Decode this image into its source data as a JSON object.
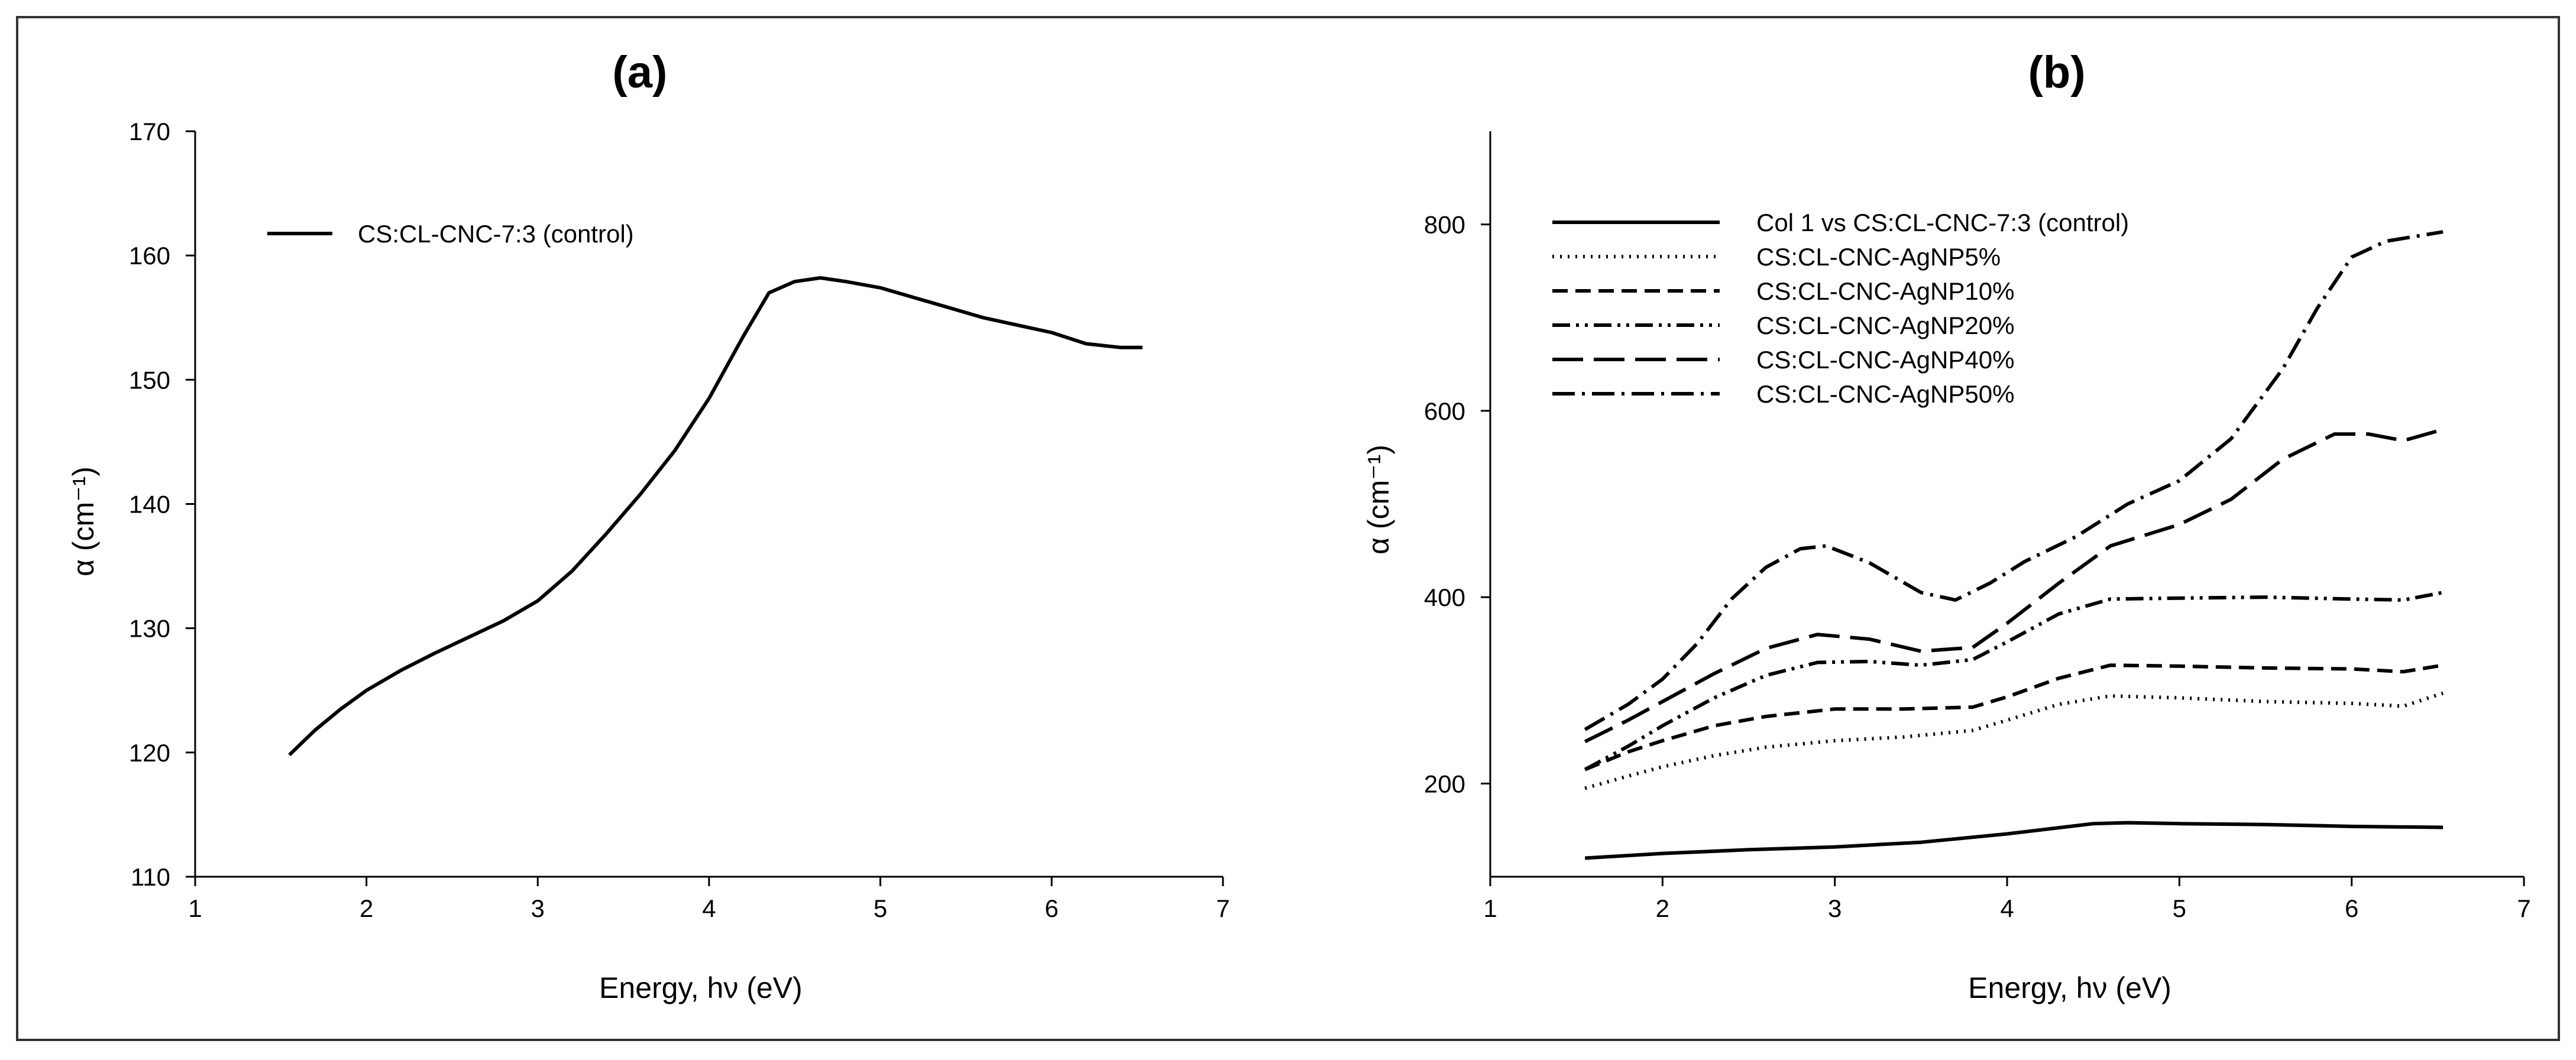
{
  "chart_data": [
    {
      "type": "line",
      "title": "(a)",
      "xlabel": "Energy, hν (eV)",
      "ylabel": "α (cm⁻¹)",
      "xlim": [
        1,
        7
      ],
      "ylim": [
        110,
        170
      ],
      "xticks": [
        "1",
        "2",
        "3",
        "4",
        "5",
        "6",
        "7"
      ],
      "yticks": [
        "110",
        "120",
        "130",
        "140",
        "150",
        "160",
        "170"
      ],
      "legend_position": "top-left",
      "series": [
        {
          "name": "CS:CL-CNC-7:3 (control)",
          "dash": "solid",
          "x": [
            1.55,
            1.7,
            1.85,
            2.0,
            2.2,
            2.4,
            2.6,
            2.8,
            3.0,
            3.2,
            3.4,
            3.6,
            3.8,
            4.0,
            4.2,
            4.35,
            4.5,
            4.65,
            4.8,
            5.0,
            5.2,
            5.4,
            5.6,
            5.8,
            6.0,
            6.2,
            6.4,
            6.53
          ],
          "y": [
            119.8,
            121.8,
            123.5,
            125,
            126.6,
            128,
            129.3,
            130.6,
            132.2,
            134.6,
            137.6,
            140.8,
            144.3,
            148.5,
            153.5,
            157.0,
            157.9,
            158.2,
            157.9,
            157.4,
            156.6,
            155.8,
            155.0,
            154.4,
            153.8,
            152.9,
            152.6,
            152.6
          ]
        }
      ]
    },
    {
      "type": "line",
      "title": "(b)",
      "xlabel": "Energy, hν (eV)",
      "ylabel": "α (cm⁻¹)",
      "xlim": [
        1,
        7
      ],
      "ylim": [
        100,
        900
      ],
      "xticks": [
        "1",
        "2",
        "3",
        "4",
        "5",
        "6",
        "7"
      ],
      "yticks": [
        "200",
        "400",
        "600",
        "800"
      ],
      "legend_position": "top-left",
      "series": [
        {
          "name": "Col 1 vs CS:CL-CNC-7:3 (control)",
          "dash": "solid",
          "x": [
            1.55,
            2.0,
            2.5,
            3.0,
            3.5,
            4.0,
            4.5,
            4.7,
            5.0,
            5.5,
            6.0,
            6.53
          ],
          "y": [
            120,
            125,
            129,
            132,
            137,
            146,
            157,
            158,
            157,
            156,
            154,
            153
          ]
        },
        {
          "name": "CS:CL-CNC-AgNP5%",
          "dash": "dot",
          "x": [
            1.55,
            1.8,
            2.0,
            2.3,
            2.6,
            3.0,
            3.4,
            3.8,
            4.0,
            4.3,
            4.6,
            5.0,
            5.5,
            6.0,
            6.3,
            6.53
          ],
          "y": [
            195,
            208,
            218,
            230,
            239,
            246,
            250,
            257,
            268,
            285,
            294,
            292,
            288,
            286,
            283,
            297
          ]
        },
        {
          "name": "CS:CL-CNC-AgNP10%",
          "dash": "dash",
          "x": [
            1.55,
            1.8,
            2.0,
            2.3,
            2.6,
            3.0,
            3.4,
            3.8,
            4.0,
            4.3,
            4.6,
            5.0,
            5.5,
            6.0,
            6.3,
            6.53
          ],
          "y": [
            215,
            234,
            246,
            262,
            272,
            280,
            280,
            282,
            293,
            313,
            327,
            326,
            324,
            323,
            320,
            327
          ]
        },
        {
          "name": "CS:CL-CNC-AgNP20%",
          "dash": "dashdotdot",
          "x": [
            1.55,
            1.8,
            2.0,
            2.3,
            2.6,
            2.9,
            3.2,
            3.5,
            3.8,
            4.0,
            4.3,
            4.6,
            5.0,
            5.5,
            6.0,
            6.3,
            6.53
          ],
          "y": [
            215,
            240,
            262,
            292,
            316,
            330,
            331,
            327,
            333,
            352,
            382,
            398,
            399,
            400,
            398,
            397,
            405
          ]
        },
        {
          "name": "CS:CL-CNC-AgNP40%",
          "dash": "longdash",
          "x": [
            1.55,
            1.8,
            2.0,
            2.3,
            2.6,
            2.9,
            3.2,
            3.5,
            3.8,
            4.0,
            4.3,
            4.6,
            5.0,
            5.3,
            5.6,
            5.9,
            6.1,
            6.3,
            6.53
          ],
          "y": [
            245,
            268,
            288,
            318,
            345,
            360,
            355,
            342,
            346,
            372,
            415,
            455,
            478,
            505,
            548,
            575,
            575,
            568,
            580
          ]
        },
        {
          "name": "CS:CL-CNC-AgNP50%",
          "dash": "dashdot",
          "x": [
            1.55,
            1.8,
            2.0,
            2.2,
            2.4,
            2.6,
            2.8,
            2.95,
            3.2,
            3.5,
            3.7,
            3.9,
            4.1,
            4.4,
            4.7,
            5.0,
            5.3,
            5.6,
            5.8,
            6.0,
            6.2,
            6.53
          ],
          "y": [
            258,
            285,
            312,
            350,
            398,
            432,
            452,
            455,
            437,
            405,
            397,
            415,
            438,
            465,
            500,
            525,
            570,
            645,
            710,
            765,
            782,
            792
          ]
        }
      ]
    }
  ]
}
